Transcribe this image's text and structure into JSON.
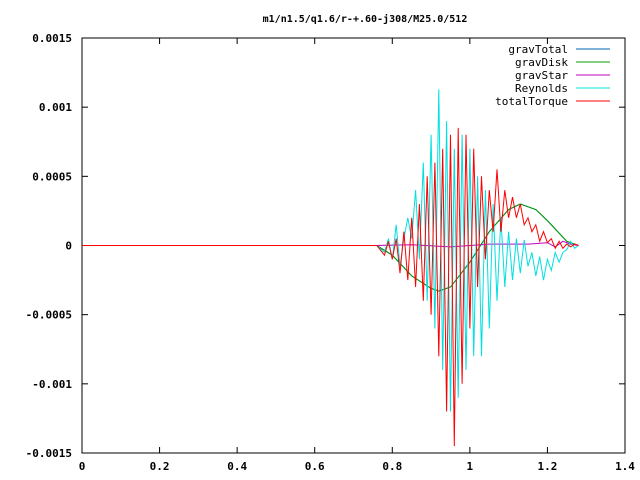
{
  "chart_data": {
    "type": "line",
    "title": "m1/n1.5/q1.6/r-+.60-j308/M25.0/512",
    "xlim": [
      0,
      1.4
    ],
    "ylim": [
      -0.0015,
      0.0015
    ],
    "xticks": [
      0,
      0.2,
      0.4,
      0.6,
      0.8,
      1,
      1.2,
      1.4
    ],
    "xtick_labels": [
      "0",
      "0.2",
      "0.4",
      "0.6",
      "0.8",
      "1",
      "1.2",
      "1.4"
    ],
    "yticks": [
      -0.0015,
      -0.001,
      -0.0005,
      0,
      0.0005,
      0.001,
      0.0015
    ],
    "ytick_labels": [
      "-0.0015",
      "-0.001",
      "-0.0005",
      "0",
      "0.0005",
      "0.001",
      "0.0015"
    ],
    "legend_position": "top-right",
    "grid": false,
    "series": [
      {
        "name": "gravTotal",
        "color": "#0060ad",
        "x": [
          0,
          0.76,
          0.8,
          0.85,
          0.9,
          0.92,
          0.95,
          1.0,
          1.05,
          1.1,
          1.13,
          1.17,
          1.2,
          1.25,
          1.28
        ],
        "y": [
          0,
          0,
          -7e-05,
          -0.00022,
          -0.00031,
          -0.00033,
          -0.0003,
          -0.00012,
          0.0001,
          0.00026,
          0.0003,
          0.00026,
          0.00018,
          3e-05,
          0
        ]
      },
      {
        "name": "gravDisk",
        "color": "#009e00",
        "x": [
          0,
          0.76,
          0.8,
          0.85,
          0.9,
          0.92,
          0.95,
          1.0,
          1.05,
          1.1,
          1.13,
          1.17,
          1.2,
          1.25,
          1.28
        ],
        "y": [
          0,
          0,
          -7e-05,
          -0.00022,
          -0.00031,
          -0.00033,
          -0.0003,
          -0.00012,
          0.0001,
          0.00026,
          0.0003,
          0.00026,
          0.00018,
          3e-05,
          0
        ]
      },
      {
        "name": "gravStar",
        "color": "#c000c0",
        "x": [
          0,
          0.76,
          0.85,
          0.95,
          1.05,
          1.15,
          1.2,
          1.22,
          1.24,
          1.26,
          1.28
        ],
        "y": [
          0,
          0,
          5e-06,
          -1e-05,
          1e-05,
          1e-05,
          2e-05,
          -1e-05,
          3e-05,
          1e-05,
          0
        ]
      },
      {
        "name": "Reynolds",
        "color": "#00e0e0",
        "x": [
          0,
          0.76,
          0.78,
          0.79,
          0.8,
          0.81,
          0.82,
          0.83,
          0.84,
          0.85,
          0.86,
          0.87,
          0.88,
          0.89,
          0.9,
          0.91,
          0.92,
          0.93,
          0.94,
          0.95,
          0.96,
          0.97,
          0.98,
          0.99,
          1.0,
          1.01,
          1.02,
          1.03,
          1.04,
          1.05,
          1.06,
          1.07,
          1.08,
          1.09,
          1.1,
          1.11,
          1.12,
          1.13,
          1.14,
          1.15,
          1.16,
          1.17,
          1.18,
          1.19,
          1.2,
          1.21,
          1.22,
          1.23,
          1.24,
          1.25,
          1.26,
          1.27,
          1.28
        ],
        "y": [
          0,
          0,
          -5e-05,
          5e-05,
          -0.0001,
          0.00015,
          -0.00015,
          5e-05,
          0.0002,
          5e-05,
          0.0004,
          -0.0001,
          0.0006,
          -0.0004,
          0.0008,
          -0.0006,
          0.00113,
          -0.0009,
          0.0009,
          -0.0012,
          0.0007,
          -0.0011,
          0.0008,
          -0.0009,
          0.0007,
          -0.0008,
          0.0005,
          -0.0008,
          0.0004,
          -0.0006,
          0.0003,
          -0.0004,
          0.0002,
          -0.0003,
          0.0001,
          -0.00025,
          5e-05,
          -0.0002,
          4e-05,
          -0.00015,
          -5e-05,
          -0.00022,
          -8e-05,
          -0.00025,
          -0.0001,
          -0.00018,
          -5e-05,
          -0.00012,
          -5e-05,
          -3e-05,
          3e-05,
          -2e-05,
          0
        ]
      },
      {
        "name": "totalTorque",
        "color": "#ff0000",
        "x": [
          0,
          0.76,
          0.78,
          0.79,
          0.8,
          0.81,
          0.82,
          0.83,
          0.84,
          0.85,
          0.86,
          0.87,
          0.88,
          0.89,
          0.9,
          0.91,
          0.92,
          0.93,
          0.94,
          0.95,
          0.96,
          0.97,
          0.98,
          0.99,
          1.0,
          1.01,
          1.02,
          1.03,
          1.04,
          1.05,
          1.06,
          1.07,
          1.08,
          1.09,
          1.1,
          1.11,
          1.12,
          1.13,
          1.14,
          1.15,
          1.16,
          1.17,
          1.18,
          1.19,
          1.2,
          1.21,
          1.22,
          1.23,
          1.24,
          1.25,
          1.26,
          1.27,
          1.28
        ],
        "y": [
          0,
          0,
          -7e-05,
          3e-05,
          -0.0001,
          5e-05,
          -0.0002,
          0.0001,
          -0.00025,
          0.0002,
          -0.0003,
          0.0003,
          -0.0004,
          0.0005,
          -0.0005,
          0.0006,
          -0.0008,
          0.0007,
          -0.0012,
          0.0008,
          -0.00145,
          0.00085,
          -0.001,
          0.0008,
          -0.0006,
          0.0007,
          -0.0003,
          0.0005,
          -0.0001,
          0.0004,
          0.0001,
          0.00055,
          0.0001,
          0.0004,
          0.0002,
          0.00035,
          0.0002,
          0.0003,
          0.00015,
          0.0002,
          0.0001,
          0.00015,
          3e-05,
          0.0001,
          2e-05,
          5e-05,
          -2e-05,
          3e-05,
          -2e-05,
          1e-05,
          -1e-05,
          1e-05,
          0
        ]
      }
    ]
  }
}
